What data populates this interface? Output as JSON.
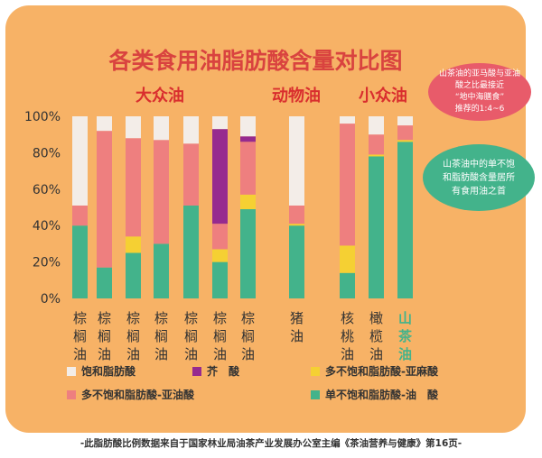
{
  "chart_data": {
    "type": "bar",
    "stacked": true,
    "title": "各类食用油脂肪酸含量对比图",
    "group_labels": [
      "大众油",
      "动物油",
      "小众油"
    ],
    "yaxis": {
      "ticks": [
        "0%",
        "20%",
        "40%",
        "60%",
        "80%",
        "100%"
      ],
      "ylim": [
        0,
        100
      ]
    },
    "categories": [
      "棕榈油",
      "棕榈油",
      "棕榈油",
      "棕榈油",
      "棕榈油",
      "棕榈油",
      "棕榈油",
      "猪油",
      "核桃油",
      "橄榄油",
      "山茶油"
    ],
    "highlight_category": 10,
    "series": [
      {
        "name": "单不饱和脂肪酸-油　酸",
        "color": "#43b38b",
        "values": [
          40,
          17,
          25,
          30,
          51,
          20,
          49,
          40,
          14,
          78,
          86
        ]
      },
      {
        "name": "多不饱和脂肪酸-亚麻酸",
        "color": "#f5d033",
        "values": [
          0,
          0,
          9,
          0,
          0,
          7,
          8,
          1,
          15,
          1,
          1
        ]
      },
      {
        "name": "多不饱和脂肪酸-亚油酸",
        "color": "#ee7f7f",
        "values": [
          11,
          75,
          54,
          57,
          34,
          14,
          29,
          10,
          67,
          11,
          8
        ]
      },
      {
        "name": "芥　酸",
        "color": "#962a8f",
        "values": [
          0,
          0,
          0,
          0,
          0,
          52,
          3,
          0,
          0,
          0,
          0
        ]
      },
      {
        "name": "饱和脂肪酸",
        "color": "#f3ede8",
        "values": [
          49,
          8,
          12,
          13,
          15,
          7,
          11,
          49,
          4,
          10,
          5
        ]
      }
    ],
    "legend_order": [
      4,
      3,
      1,
      2,
      0
    ]
  },
  "callouts": {
    "top": [
      "山茶油的亚马酸与亚油",
      "酸之比最接近",
      "“地中海膳食”",
      "推荐的1:4~6"
    ],
    "bottom": [
      "山茶油中的单不饱",
      "和脂肪酸含量居所",
      "有食用油之首"
    ]
  },
  "footer": "-此脂肪酸比例数据来自于国家林业局油茶产业发展办公室主编《茶油营养与健康》第16页-",
  "colors": {
    "card": "#f7b266",
    "title": "#d9433f",
    "group_label": "#d92e2e",
    "highlight": "#43b38b",
    "text": "#333333"
  }
}
